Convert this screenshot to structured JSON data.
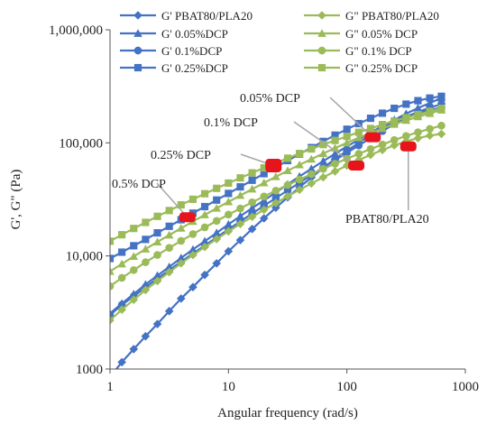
{
  "chart_data": {
    "type": "scatter",
    "xlabel": "Angular  frequency (rad/s)",
    "ylabel": "G', G\" (Pa)",
    "x_scale": "log",
    "y_scale": "log",
    "xlim": [
      1,
      1000
    ],
    "ylim": [
      1000,
      1000000
    ],
    "x_ticks": [
      "1",
      "10",
      "100",
      "1000"
    ],
    "y_ticks": [
      "1000",
      "10,000",
      "100,000",
      "1,000,000"
    ],
    "grid": false,
    "legend_position": "top",
    "x": [
      1.0,
      1.259,
      1.585,
      1.995,
      2.512,
      3.162,
      3.981,
      5.012,
      6.31,
      7.943,
      10.0,
      12.59,
      15.85,
      19.95,
      25.12,
      31.62,
      39.81,
      50.12,
      63.1,
      79.43,
      100.0,
      125.9,
      158.5,
      199.5,
      251.2,
      316.2,
      398.1,
      501.2,
      628.0
    ],
    "series": [
      {
        "name": "G' PBAT80/PLA20",
        "color": "#4472C4",
        "marker": "diamond",
        "line": true,
        "values": [
          850,
          1150,
          1500,
          1950,
          2500,
          3250,
          4200,
          5300,
          6800,
          8600,
          11000,
          13800,
          17300,
          21500,
          26700,
          33000,
          40500,
          49500,
          60000,
          72000,
          85000,
          100000,
          118000,
          137000,
          155000,
          172000,
          185000,
          195000,
          205000
        ]
      },
      {
        "name": "G' 0.05%DCP",
        "color": "#4472C4",
        "marker": "triangle",
        "line": true,
        "values": [
          3100,
          3800,
          4600,
          5600,
          6700,
          8000,
          9600,
          11400,
          13500,
          16000,
          19000,
          22500,
          26500,
          31000,
          36500,
          43000,
          50500,
          59000,
          69000,
          80000,
          93000,
          107000,
          123000,
          141000,
          160000,
          181000,
          203000,
          225000,
          250000
        ]
      },
      {
        "name": "G' 0.1%DCP",
        "color": "#4472C4",
        "marker": "circle",
        "line": true,
        "values": [
          3000,
          3700,
          4400,
          5300,
          6300,
          7500,
          8900,
          10500,
          12400,
          14600,
          17200,
          20200,
          23700,
          27800,
          32500,
          38000,
          44400,
          51800,
          60400,
          70300,
          81700,
          94800,
          110000,
          127000,
          147000,
          168000,
          188000,
          205000,
          220000
        ]
      },
      {
        "name": "G' 0.25%DCP",
        "color": "#4472C4",
        "marker": "square",
        "line": true,
        "values": [
          9500,
          10800,
          12300,
          14000,
          16000,
          18300,
          20900,
          23900,
          27300,
          31200,
          35700,
          40800,
          46700,
          53400,
          61000,
          69700,
          79600,
          90800,
          103000,
          117000,
          132000,
          148000,
          165000,
          183000,
          202000,
          220000,
          236000,
          249000,
          258000
        ]
      },
      {
        "name": "G\" PBAT80/PLA20",
        "color": "#9BBB59",
        "marker": "diamond",
        "line": true,
        "values": [
          2700,
          3350,
          4100,
          5000,
          6000,
          7200,
          8600,
          10200,
          12000,
          14100,
          16500,
          19200,
          22200,
          25600,
          29400,
          33700,
          38500,
          43800,
          49600,
          56000,
          63000,
          70400,
          78300,
          86500,
          95000,
          103000,
          110000,
          116000,
          120000
        ]
      },
      {
        "name": "G\" 0.05% DCP",
        "color": "#9BBB59",
        "marker": "triangle",
        "line": true,
        "values": [
          7300,
          8500,
          9900,
          11500,
          13300,
          15300,
          17600,
          20200,
          23100,
          26400,
          30100,
          34300,
          39000,
          44300,
          50200,
          56700,
          63900,
          71800,
          80500,
          90000,
          100000,
          111000,
          122000,
          134000,
          146000,
          158000,
          170000,
          182000,
          195000
        ]
      },
      {
        "name": "G\" 0.1% DCP",
        "color": "#9BBB59",
        "marker": "circle",
        "line": true,
        "values": [
          5400,
          6400,
          7500,
          8800,
          10200,
          11800,
          13600,
          15600,
          17900,
          20400,
          23200,
          26300,
          29800,
          33600,
          37800,
          42400,
          47400,
          52900,
          58900,
          65400,
          72400,
          80000,
          88100,
          96700,
          106000,
          115000,
          124000,
          133000,
          142000
        ]
      },
      {
        "name": "G\" 0.25% DCP",
        "color": "#9BBB59",
        "marker": "square",
        "line": true,
        "values": [
          13500,
          15400,
          17500,
          19800,
          22400,
          25200,
          28300,
          31700,
          35500,
          39600,
          44100,
          49000,
          54300,
          60100,
          66400,
          73200,
          80500,
          88300,
          96600,
          105000,
          114000,
          124000,
          134000,
          145000,
          156000,
          167000,
          178000,
          190000,
          202000
        ]
      }
    ],
    "annotations": [
      {
        "text": "0.5% DCP",
        "x": 4.5,
        "y": 22000
      },
      {
        "text": "0.25% DCP",
        "x": 24,
        "y": 63000
      },
      {
        "text": "0.1% DCP",
        "x": 120,
        "y": 63000
      },
      {
        "text": "0.05% DCP",
        "x": 165,
        "y": 112000
      },
      {
        "text": "PBAT80/PLA20",
        "x": 330,
        "y": 93000
      }
    ],
    "highlight_color": "#E8141B"
  }
}
